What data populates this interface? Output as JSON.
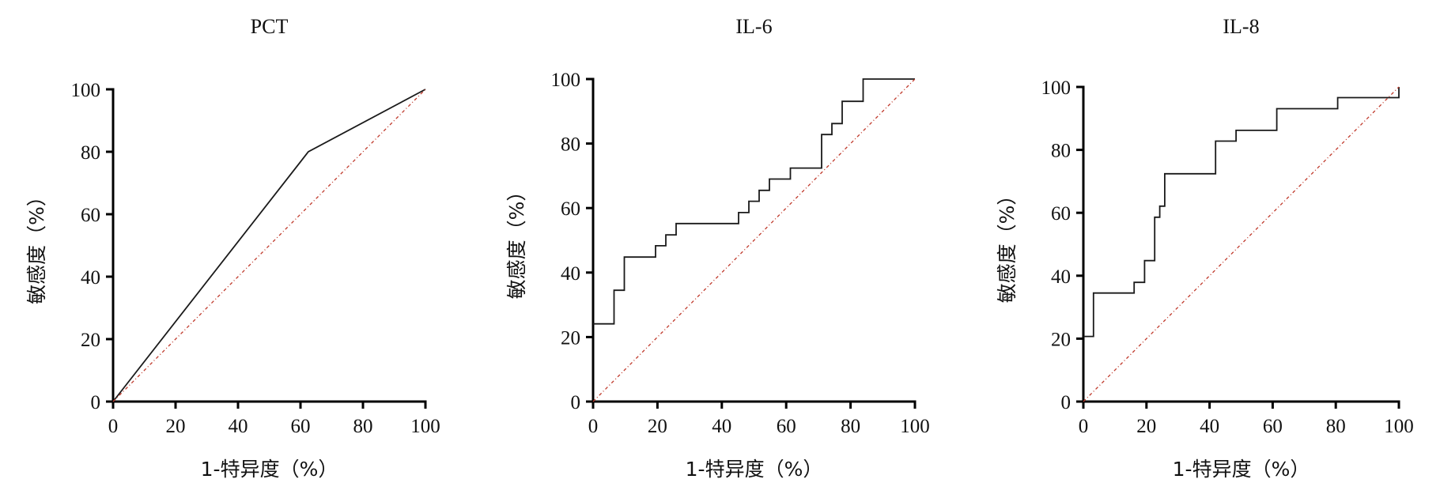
{
  "chart_data": [
    {
      "type": "line",
      "title": "PCT",
      "xlabel": "1-特异度（%）",
      "ylabel": "敏感度（%）",
      "xlim": [
        0,
        100
      ],
      "ylim": [
        0,
        100
      ],
      "x_ticks": [
        "0",
        "20",
        "40",
        "60",
        "80",
        "100"
      ],
      "y_ticks": [
        "0",
        "20",
        "40",
        "60",
        "80",
        "100"
      ],
      "grid": false,
      "series": [
        {
          "color": "#1a1a1a",
          "x": [
            0,
            62.5,
            100
          ],
          "y": [
            0,
            80,
            100
          ]
        },
        {
          "color": "#c0392b",
          "style": "dash-dot",
          "x": [
            0,
            100
          ],
          "y": [
            0,
            100
          ]
        }
      ]
    },
    {
      "type": "line",
      "title": "IL-6",
      "xlabel": "1-特异度（%）",
      "ylabel": "敏感度（%）",
      "xlim": [
        0,
        100
      ],
      "ylim": [
        0,
        100
      ],
      "x_ticks": [
        "0",
        "20",
        "40",
        "60",
        "80",
        "100"
      ],
      "y_ticks": [
        "0",
        "20",
        "40",
        "60",
        "80",
        "100"
      ],
      "grid": false,
      "series": [
        {
          "color": "#1a1a1a",
          "x": [
            0,
            6.5,
            6.5,
            9.7,
            9.7,
            19.4,
            19.4,
            22.6,
            22.6,
            25.8,
            25.8,
            45.2,
            45.2,
            48.4,
            48.4,
            51.6,
            51.6,
            54.8,
            54.8,
            61.3,
            61.3,
            71,
            71,
            74.2,
            74.2,
            77.4,
            77.4,
            83.9,
            83.9,
            100
          ],
          "y": [
            24.1,
            24.1,
            34.5,
            34.5,
            44.8,
            44.8,
            48.3,
            48.3,
            51.7,
            51.7,
            55.2,
            55.2,
            58.6,
            58.6,
            62.1,
            62.1,
            65.5,
            65.5,
            69,
            69,
            72.4,
            72.4,
            82.8,
            82.8,
            86.2,
            86.2,
            93.1,
            93.1,
            100,
            100
          ]
        },
        {
          "color": "#c0392b",
          "style": "dash-dot",
          "x": [
            0,
            100
          ],
          "y": [
            0,
            100
          ]
        }
      ]
    },
    {
      "type": "line",
      "title": "IL-8",
      "xlabel": "1-特异度（%）",
      "ylabel": "敏感度（%）",
      "xlim": [
        0,
        100
      ],
      "ylim": [
        0,
        100
      ],
      "x_ticks": [
        "0",
        "20",
        "40",
        "60",
        "80",
        "100"
      ],
      "y_ticks": [
        "0",
        "20",
        "40",
        "60",
        "80",
        "100"
      ],
      "grid": false,
      "series": [
        {
          "color": "#1a1a1a",
          "x": [
            0,
            3.2,
            3.2,
            16.1,
            16.1,
            19.4,
            19.4,
            22.6,
            22.6,
            24.2,
            24.2,
            25.8,
            25.8,
            41.9,
            41.9,
            48.4,
            48.4,
            61.3,
            61.3,
            80.6,
            80.6,
            100,
            100
          ],
          "y": [
            20.7,
            20.7,
            34.5,
            34.5,
            37.9,
            37.9,
            44.8,
            44.8,
            58.6,
            58.6,
            62.1,
            62.1,
            72.4,
            72.4,
            82.8,
            82.8,
            86.2,
            86.2,
            93.1,
            93.1,
            96.6,
            96.6,
            100
          ]
        },
        {
          "color": "#c0392b",
          "style": "dash-dot",
          "x": [
            0,
            100
          ],
          "y": [
            0,
            100
          ]
        }
      ]
    }
  ]
}
